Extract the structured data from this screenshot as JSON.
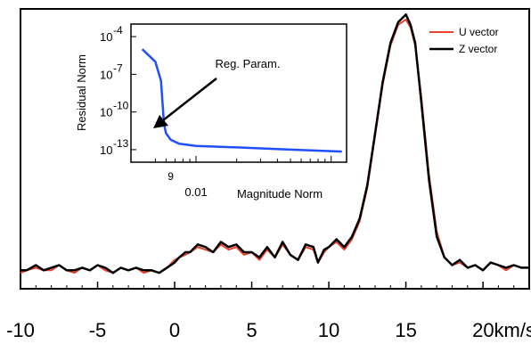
{
  "chart_data": [
    {
      "type": "line",
      "title": "",
      "xlabel": "",
      "ylabel": "",
      "x_unit": "km/s",
      "xlim": [
        -10,
        23
      ],
      "x_ticks": [
        -10,
        -5,
        0,
        5,
        10,
        15,
        20
      ],
      "x_tick_labels": [
        "-10",
        "-5",
        "0",
        "5",
        "10",
        "15",
        "20km/s"
      ],
      "y_ticks_shown": false,
      "legend_position": "top-right",
      "x": [
        -10.0,
        -9.6,
        -9.0,
        -8.5,
        -8.0,
        -7.5,
        -7.0,
        -6.5,
        -6.0,
        -5.5,
        -5.0,
        -4.5,
        -4.0,
        -3.5,
        -3.0,
        -2.5,
        -2.0,
        -1.5,
        -1.0,
        -0.5,
        0.0,
        0.3,
        0.7,
        1.0,
        1.5,
        2.0,
        2.5,
        3.0,
        3.5,
        4.0,
        4.5,
        5.0,
        5.5,
        6.0,
        6.5,
        7.0,
        7.5,
        8.0,
        8.5,
        9.0,
        9.3,
        9.7,
        10.0,
        10.5,
        11.0,
        11.5,
        12.0,
        12.5,
        13.0,
        13.5,
        14.0,
        14.5,
        15.0,
        15.3,
        15.6,
        16.0,
        16.5,
        17.0,
        17.5,
        18.0,
        18.5,
        19.0,
        19.5,
        20.0,
        20.5,
        21.0,
        21.5,
        22.0,
        22.5,
        23.0
      ],
      "series": [
        {
          "name": "U vector",
          "color": "#e8402a",
          "values": [
            0.02,
            0.03,
            0.04,
            0.03,
            0.03,
            0.05,
            0.03,
            0.02,
            0.04,
            0.03,
            0.05,
            0.03,
            0.02,
            0.04,
            0.03,
            0.04,
            0.02,
            0.03,
            0.02,
            0.04,
            0.07,
            0.08,
            0.09,
            0.1,
            0.12,
            0.11,
            0.1,
            0.13,
            0.11,
            0.12,
            0.09,
            0.1,
            0.07,
            0.11,
            0.08,
            0.13,
            0.09,
            0.07,
            0.12,
            0.11,
            0.06,
            0.1,
            0.12,
            0.14,
            0.11,
            0.15,
            0.22,
            0.35,
            0.55,
            0.75,
            0.9,
            0.98,
            1.0,
            0.97,
            0.9,
            0.7,
            0.4,
            0.18,
            0.08,
            0.05,
            0.06,
            0.04,
            0.05,
            0.03,
            0.06,
            0.05,
            0.03,
            0.05,
            0.04,
            0.04
          ]
        },
        {
          "name": "Z vector",
          "color": "#000000",
          "values": [
            0.03,
            0.03,
            0.05,
            0.03,
            0.04,
            0.05,
            0.03,
            0.03,
            0.04,
            0.03,
            0.05,
            0.04,
            0.02,
            0.04,
            0.03,
            0.04,
            0.03,
            0.03,
            0.02,
            0.04,
            0.06,
            0.08,
            0.1,
            0.1,
            0.13,
            0.12,
            0.1,
            0.14,
            0.12,
            0.13,
            0.1,
            0.1,
            0.08,
            0.12,
            0.08,
            0.14,
            0.09,
            0.07,
            0.13,
            0.12,
            0.06,
            0.11,
            0.12,
            0.15,
            0.12,
            0.16,
            0.23,
            0.36,
            0.56,
            0.76,
            0.91,
            0.99,
            1.02,
            0.98,
            0.91,
            0.68,
            0.38,
            0.16,
            0.08,
            0.05,
            0.07,
            0.04,
            0.05,
            0.03,
            0.06,
            0.05,
            0.04,
            0.05,
            0.04,
            0.04
          ]
        }
      ]
    },
    {
      "type": "line",
      "title": "",
      "xlabel": "Magnitude Norm",
      "ylabel": "Residual Norm",
      "y_scale": "log",
      "x_scale": "log",
      "ylim": [
        1e-14,
        0.001
      ],
      "y_ticks": [
        1e-13,
        1e-10,
        1e-07,
        0.0001
      ],
      "y_tick_labels": [
        [
          "10",
          "-13"
        ],
        [
          "10",
          "-10"
        ],
        [
          "10",
          "-7"
        ],
        [
          "10",
          "-4"
        ]
      ],
      "x_tick_labels": [
        "9",
        "0.01"
      ],
      "annotation": "Reg. Param.",
      "series": [
        {
          "color": "#1f4fff",
          "x": [
            0.004,
            0.005,
            0.0055,
            0.0058,
            0.006,
            0.0065,
            0.0075,
            0.01,
            0.02,
            0.05,
            0.12
          ],
          "y": [
            1e-05,
            1e-06,
            3e-08,
            1e-11,
            2e-12,
            6e-13,
            3e-13,
            2e-13,
            1.5e-13,
            1e-13,
            7e-14
          ]
        }
      ]
    }
  ]
}
